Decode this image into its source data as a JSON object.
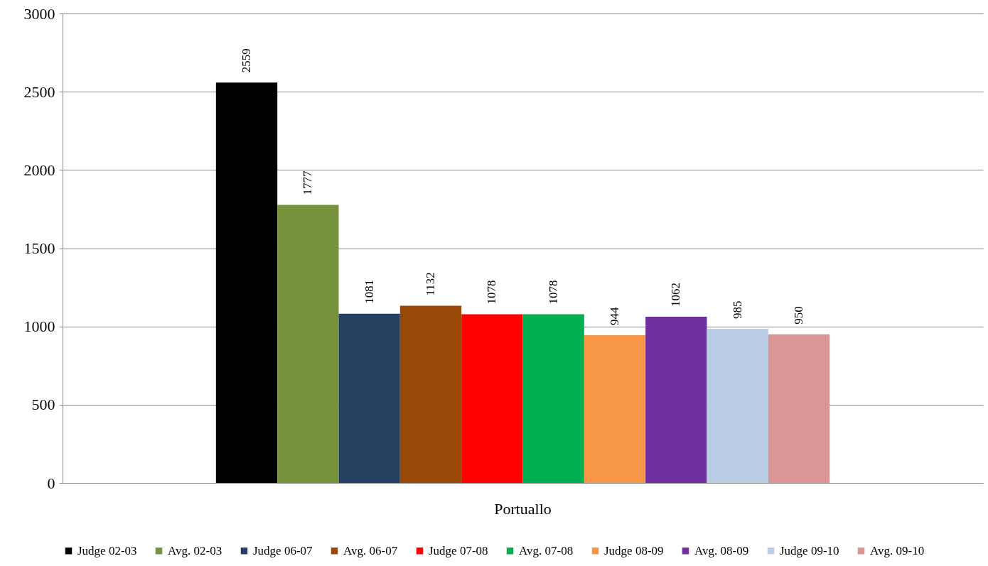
{
  "chart_data": {
    "type": "bar",
    "categories": [
      "Portuallo"
    ],
    "series": [
      {
        "name": "Judge 02-03",
        "color": "#000000",
        "values": [
          2559
        ]
      },
      {
        "name": "Avg. 02-03",
        "color": "#77933c",
        "values": [
          1777
        ]
      },
      {
        "name": "Judge 06-07",
        "color": "#254061",
        "values": [
          1081
        ]
      },
      {
        "name": "Avg. 06-07",
        "color": "#984807",
        "values": [
          1132
        ]
      },
      {
        "name": "Judge 07-08",
        "color": "#ff0000",
        "values": [
          1078
        ]
      },
      {
        "name": "Avg. 07-08",
        "color": "#00b050",
        "values": [
          1078
        ]
      },
      {
        "name": "Judge 08-09",
        "color": "#f79646",
        "values": [
          944
        ]
      },
      {
        "name": "Avg. 08-09",
        "color": "#7030a0",
        "values": [
          1062
        ]
      },
      {
        "name": "Judge 09-10",
        "color": "#b9cde5",
        "values": [
          985
        ]
      },
      {
        "name": "Avg. 09-10",
        "color": "#d99694",
        "values": [
          950
        ]
      }
    ],
    "ylim": [
      0,
      3000
    ],
    "yticks": [
      0,
      500,
      1000,
      1500,
      2000,
      2500,
      3000
    ],
    "grid": "y",
    "legend": "bottom",
    "data_labels": true
  }
}
